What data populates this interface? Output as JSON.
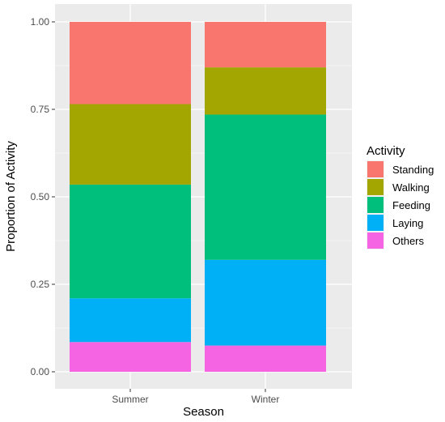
{
  "chart_data": {
    "type": "bar",
    "stacked": true,
    "categories": [
      "Summer",
      "Winter"
    ],
    "series": [
      {
        "name": "Others",
        "color": "#F564E3",
        "values": [
          0.085,
          0.075
        ]
      },
      {
        "name": "Laying",
        "color": "#00B0F6",
        "values": [
          0.125,
          0.245
        ]
      },
      {
        "name": "Feeding",
        "color": "#00BF7D",
        "values": [
          0.325,
          0.415
        ]
      },
      {
        "name": "Walking",
        "color": "#A3A500",
        "values": [
          0.23,
          0.135
        ]
      },
      {
        "name": "Standing",
        "color": "#F8766D",
        "values": [
          0.235,
          0.13
        ]
      }
    ],
    "xlabel": "Season",
    "ylabel": "Proportion of Activity",
    "ylim": [
      0,
      1
    ],
    "yticks": [
      "0.00",
      "0.25",
      "0.50",
      "0.75",
      "1.00"
    ],
    "yticks_values": [
      0,
      0.25,
      0.5,
      0.75,
      1
    ],
    "legend": {
      "title": "Activity",
      "placement": "right",
      "order": [
        "Standing",
        "Walking",
        "Feeding",
        "Laying",
        "Others"
      ]
    },
    "grid": true,
    "panel_background": "#EBEBEB",
    "grid_color": "#FFFFFF"
  }
}
